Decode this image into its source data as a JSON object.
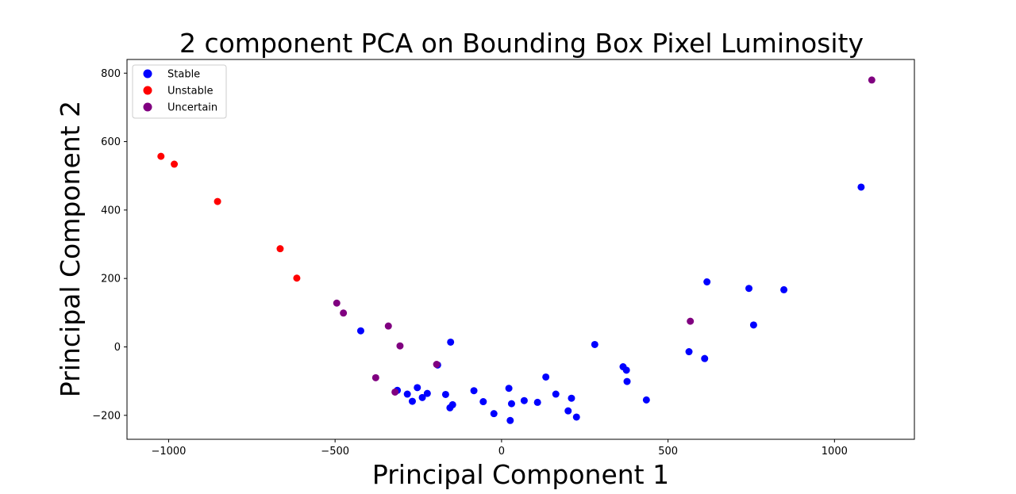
{
  "chart_data": {
    "type": "scatter",
    "title": "2 component PCA on Bounding Box Pixel Luminosity",
    "xlabel": "Principal Component 1",
    "ylabel": "Principal Component 2",
    "xlim": [
      -1125,
      1240
    ],
    "ylim": [
      -270,
      840
    ],
    "xticks": [
      -1000,
      -500,
      0,
      500,
      1000
    ],
    "yticks": [
      -200,
      0,
      200,
      400,
      600,
      800
    ],
    "grid": false,
    "legend_position": "upper-left",
    "series": [
      {
        "name": "Stable",
        "color": "#0000ff",
        "points": [
          {
            "x": 1080,
            "y": 467
          },
          {
            "x": 617,
            "y": 190
          },
          {
            "x": 743,
            "y": 171
          },
          {
            "x": 848,
            "y": 167
          },
          {
            "x": 757,
            "y": 64
          },
          {
            "x": 563,
            "y": -14
          },
          {
            "x": 610,
            "y": -34
          },
          {
            "x": 280,
            "y": 7
          },
          {
            "x": 365,
            "y": -58
          },
          {
            "x": 375,
            "y": -68
          },
          {
            "x": 377,
            "y": -101
          },
          {
            "x": 435,
            "y": -155
          },
          {
            "x": 133,
            "y": -88
          },
          {
            "x": 163,
            "y": -138
          },
          {
            "x": 210,
            "y": -150
          },
          {
            "x": 200,
            "y": -187
          },
          {
            "x": 225,
            "y": -205
          },
          {
            "x": 108,
            "y": -162
          },
          {
            "x": 68,
            "y": -157
          },
          {
            "x": 30,
            "y": -166
          },
          {
            "x": 22,
            "y": -121
          },
          {
            "x": 26,
            "y": -215
          },
          {
            "x": -23,
            "y": -195
          },
          {
            "x": -55,
            "y": -160
          },
          {
            "x": -83,
            "y": -128
          },
          {
            "x": -153,
            "y": 14
          },
          {
            "x": -147,
            "y": -169
          },
          {
            "x": -155,
            "y": -178
          },
          {
            "x": -168,
            "y": -139
          },
          {
            "x": -192,
            "y": -53
          },
          {
            "x": -223,
            "y": -136
          },
          {
            "x": -238,
            "y": -148
          },
          {
            "x": -253,
            "y": -119
          },
          {
            "x": -268,
            "y": -159
          },
          {
            "x": -283,
            "y": -138
          },
          {
            "x": -313,
            "y": -127
          },
          {
            "x": -423,
            "y": 47
          }
        ]
      },
      {
        "name": "Unstable",
        "color": "#ff0000",
        "points": [
          {
            "x": -1023,
            "y": 557
          },
          {
            "x": -983,
            "y": 534
          },
          {
            "x": -853,
            "y": 425
          },
          {
            "x": -665,
            "y": 287
          },
          {
            "x": -615,
            "y": 201
          }
        ]
      },
      {
        "name": "Uncertain",
        "color": "#800080",
        "points": [
          {
            "x": 1112,
            "y": 780
          },
          {
            "x": 567,
            "y": 75
          },
          {
            "x": -495,
            "y": 128
          },
          {
            "x": -475,
            "y": 99
          },
          {
            "x": -340,
            "y": 61
          },
          {
            "x": -305,
            "y": 3
          },
          {
            "x": -378,
            "y": -90
          },
          {
            "x": -320,
            "y": -132
          },
          {
            "x": -195,
            "y": -51
          }
        ]
      }
    ]
  }
}
